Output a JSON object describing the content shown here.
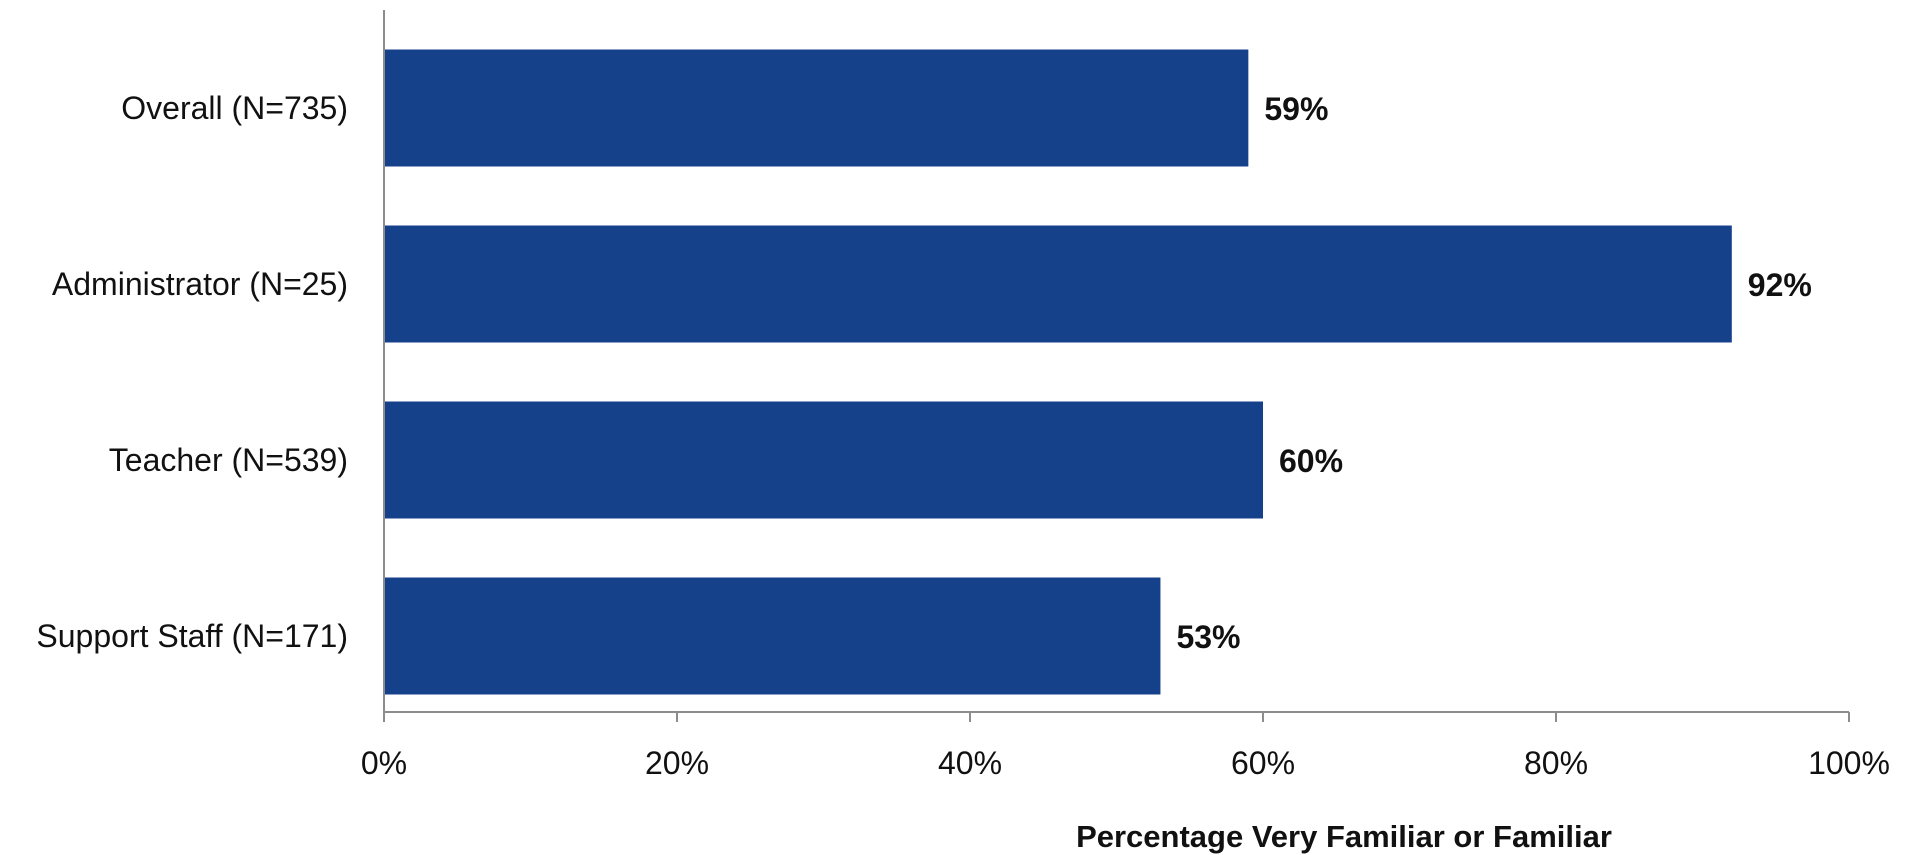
{
  "chart_data": {
    "type": "bar",
    "orientation": "horizontal",
    "categories": [
      "Overall (N=735)",
      "Administrator (N=25)",
      "Teacher (N=539)",
      "Support Staff (N=171)"
    ],
    "values": [
      59,
      92,
      60,
      53
    ],
    "value_labels": [
      "59%",
      "92%",
      "60%",
      "53%"
    ],
    "title": "",
    "xlabel": "Percentage Very Familiar or Familiar",
    "ylabel": "",
    "xlim": [
      0,
      100
    ],
    "x_ticks": [
      0,
      20,
      40,
      60,
      80,
      100
    ],
    "x_tick_labels": [
      "0%",
      "20%",
      "40%",
      "60%",
      "80%",
      "100%"
    ],
    "grid": false,
    "legend": "none",
    "bar_color": "#14418A",
    "axis_color": "#8C8C8C"
  }
}
